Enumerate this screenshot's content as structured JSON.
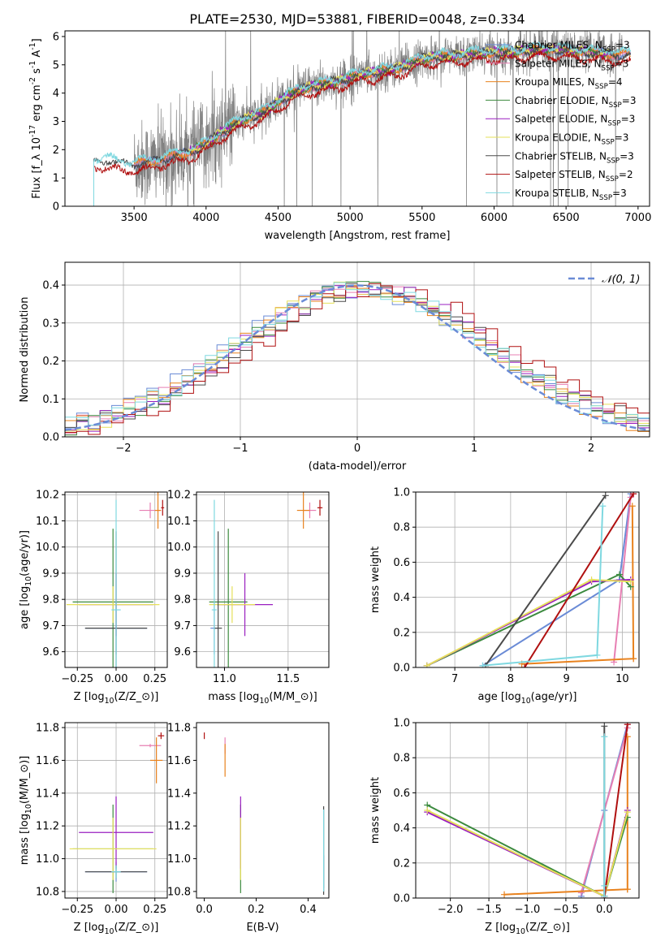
{
  "figure_title": "PLATE=2530, MJD=53881, FIBERID=0048, z=0.334",
  "legend_models": [
    {
      "label": "Chabrier MILES, N_{SSP}=3",
      "color": "#6a8bd6"
    },
    {
      "label": "Salpeter MILES, N_{SSP}=3",
      "color": "#e77fb3"
    },
    {
      "label": "Kroupa MILES, N_{SSP}=4",
      "color": "#e8821e"
    },
    {
      "label": "Chabrier ELODIE, N_{SSP}=3",
      "color": "#3b8a3e"
    },
    {
      "label": "Salpeter ELODIE, N_{SSP}=3",
      "color": "#9a1fc0"
    },
    {
      "label": "Kroupa ELODIE, N_{SSP}=3",
      "color": "#e6e05a"
    },
    {
      "label": "Chabrier STELIB, N_{SSP}=3",
      "color": "#4a4a4a"
    },
    {
      "label": "Salpeter STELIB, N_{SSP}=2",
      "color": "#b01010"
    },
    {
      "label": "Kroupa STELIB, N_{SSP}=3",
      "color": "#7fd8e0"
    }
  ],
  "chart_data": [
    {
      "id": "spectrum",
      "type": "line",
      "xlabel": "wavelength [Angstrom, rest frame]",
      "ylabel": "Flux [f_λ 10^{-17} erg cm^{-2} s^{-1} A^{-1}]",
      "xlim": [
        3020,
        7080
      ],
      "ylim": [
        0,
        6.2
      ],
      "xticks": [
        3500,
        4000,
        4500,
        5000,
        5500,
        6000,
        6500,
        7000
      ],
      "yticks": [
        0,
        1,
        2,
        3,
        4,
        5,
        6
      ],
      "grid": false,
      "legend_position": "top-right",
      "data_color": "#808080",
      "data_range": [
        3500,
        6900
      ],
      "model_anchors": {
        "x": [
          3220,
          3300,
          3400,
          3500,
          3600,
          3700,
          3800,
          3900,
          4000,
          4100,
          4200,
          4300,
          4400,
          4500,
          4600,
          4700,
          4800,
          4900,
          5000,
          5100,
          5200,
          5300,
          5400,
          5500,
          5600,
          5700,
          5800,
          5900,
          6000,
          6100,
          6200,
          6300,
          6400,
          6500,
          6600,
          6700,
          6800,
          6900
        ],
        "y": [
          1.6,
          1.65,
          1.5,
          1.5,
          1.55,
          1.7,
          1.8,
          1.95,
          2.2,
          2.6,
          2.9,
          3.15,
          3.3,
          3.7,
          4.0,
          4.2,
          4.3,
          4.4,
          4.55,
          4.7,
          4.75,
          4.85,
          5.0,
          5.2,
          5.3,
          5.3,
          5.35,
          5.4,
          5.45,
          5.45,
          5.5,
          5.55,
          5.55,
          5.5,
          5.5,
          5.4,
          5.4,
          5.35
        ]
      },
      "model_ranges": [
        [
          3500,
          6950
        ],
        [
          3500,
          6950
        ],
        [
          3500,
          6950
        ],
        [
          3880,
          6800
        ],
        [
          3880,
          6800
        ],
        [
          3880,
          6800
        ],
        [
          3220,
          6950
        ],
        [
          3220,
          6950
        ],
        [
          3220,
          6950
        ]
      ]
    },
    {
      "id": "residuals",
      "type": "histogram",
      "xlabel": "(data-model)/error",
      "ylabel": "Normed distribution",
      "xlim": [
        -2.5,
        2.5
      ],
      "ylim": [
        0,
        0.46
      ],
      "xticks": [
        -2,
        -1,
        0,
        1,
        2
      ],
      "yticks": [
        0.0,
        0.1,
        0.2,
        0.3,
        0.4
      ],
      "grid": true,
      "bin_width": 0.1,
      "bin_start": -2.5,
      "reference_curve": {
        "name": "N(0,1)",
        "mean": 0,
        "sigma": 1,
        "color": "#6a8bd6",
        "style": "dashed"
      },
      "legend_position": "top-right",
      "series_shifts": [
        0.0,
        0.05,
        0.03,
        0.08,
        0.1,
        0.06,
        0.12,
        0.22,
        0.04
      ]
    },
    {
      "id": "age-vs-Z",
      "type": "errorbar",
      "xlabel": "Z [log_{10}(Z/Z_⊙)]",
      "ylabel": "age  [log_{10}(age/yr)]",
      "xlim": [
        -0.33,
        0.33
      ],
      "ylim": [
        9.54,
        10.21
      ],
      "xticks": [
        -0.25,
        0.0,
        0.25
      ],
      "yticks": [
        9.6,
        9.7,
        9.8,
        9.9,
        10.0,
        10.1,
        10.2
      ],
      "grid": true,
      "points": [
        {
          "model": 0,
          "x": 0.0,
          "xerr": 0.2,
          "y": 9.69,
          "yerr": 0.1
        },
        {
          "model": 1,
          "x": 0.22,
          "xerr": 0.07,
          "y": 10.14,
          "yerr": 0.03
        },
        {
          "model": 2,
          "x": 0.27,
          "xerr": 0.02,
          "y": 10.14,
          "yerr": 0.07
        },
        {
          "model": 3,
          "x": -0.02,
          "xerr": 0.26,
          "y": 9.79,
          "yerr": 0.28
        },
        {
          "model": 4,
          "x": 0.0,
          "xerr": 0.24,
          "y": 9.78,
          "yerr": 0.12
        },
        {
          "model": 5,
          "x": -0.02,
          "xerr": 0.3,
          "y": 9.78,
          "yerr": 0.07
        },
        {
          "model": 6,
          "x": 0.0,
          "xerr": 0.2,
          "y": 9.69,
          "yerr": 0.37
        },
        {
          "model": 7,
          "x": 0.3,
          "xerr": 0.01,
          "y": 10.15,
          "yerr": 0.03
        },
        {
          "model": 8,
          "x": 0.0,
          "xerr": 0.03,
          "y": 9.76,
          "yerr": 0.42
        }
      ]
    },
    {
      "id": "age-vs-mass",
      "type": "errorbar",
      "xlabel": "mass [log_{10}(M/M_⊙)]",
      "ylabel": "",
      "xlim": [
        10.78,
        11.82
      ],
      "ylim": [
        9.54,
        10.21
      ],
      "xticks": [
        11.0,
        11.5
      ],
      "yticks": [
        9.6,
        9.7,
        9.8,
        9.9,
        10.0,
        10.1,
        10.2
      ],
      "grid": true,
      "points": [
        {
          "model": 0,
          "x": 10.92,
          "xerr": 0.03,
          "y": 9.69,
          "yerr": 0.1
        },
        {
          "model": 1,
          "x": 11.67,
          "xerr": 0.05,
          "y": 10.14,
          "yerr": 0.03
        },
        {
          "model": 2,
          "x": 11.62,
          "xerr": 0.05,
          "y": 10.14,
          "yerr": 0.07
        },
        {
          "model": 3,
          "x": 11.03,
          "xerr": 0.15,
          "y": 9.79,
          "yerr": 0.28
        },
        {
          "model": 4,
          "x": 11.16,
          "xerr": 0.22,
          "y": 9.78,
          "yerr": 0.12
        },
        {
          "model": 5,
          "x": 11.06,
          "xerr": 0.18,
          "y": 9.78,
          "yerr": 0.07
        },
        {
          "model": 6,
          "x": 10.95,
          "xerr": 0.03,
          "y": 9.69,
          "yerr": 0.37
        },
        {
          "model": 7,
          "x": 11.75,
          "xerr": 0.02,
          "y": 10.15,
          "yerr": 0.03
        },
        {
          "model": 8,
          "x": 10.92,
          "xerr": 0.02,
          "y": 9.76,
          "yerr": 0.42
        }
      ]
    },
    {
      "id": "mass-weight-vs-age",
      "type": "line",
      "xlabel": "age  [log_{10}(age/yr)]",
      "ylabel": "mass weight",
      "xlim": [
        6.3,
        10.3
      ],
      "ylim": [
        0.0,
        1.0
      ],
      "xticks": [
        7,
        8,
        9,
        10
      ],
      "yticks": [
        0.0,
        0.2,
        0.4,
        0.6,
        0.8,
        1.0
      ],
      "grid": true,
      "series": [
        {
          "model": 0,
          "x": [
            7.5,
            9.95,
            10.15
          ],
          "y": [
            0.01,
            0.5,
            0.99
          ]
        },
        {
          "model": 1,
          "x": [
            9.85,
            10.15,
            10.2
          ],
          "y": [
            0.03,
            0.97,
            0.99
          ]
        },
        {
          "model": 2,
          "x": [
            8.2,
            10.2,
            10.18,
            10.2
          ],
          "y": [
            0.02,
            0.05,
            0.92,
            0.05
          ]
        },
        {
          "model": 3,
          "x": [
            6.5,
            9.95,
            10.15
          ],
          "y": [
            0.01,
            0.53,
            0.46
          ]
        },
        {
          "model": 4,
          "x": [
            6.5,
            9.45,
            10.15
          ],
          "y": [
            0.01,
            0.49,
            0.5
          ]
        },
        {
          "model": 5,
          "x": [
            6.5,
            9.45,
            10.15
          ],
          "y": [
            0.01,
            0.5,
            0.49
          ]
        },
        {
          "model": 6,
          "x": [
            7.55,
            9.7
          ],
          "y": [
            0.01,
            0.98
          ]
        },
        {
          "model": 7,
          "x": [
            8.25,
            10.2
          ],
          "y": [
            0.0,
            0.99
          ]
        },
        {
          "model": 8,
          "x": [
            7.5,
            9.55,
            9.65
          ],
          "y": [
            0.01,
            0.07,
            0.92
          ]
        }
      ]
    },
    {
      "id": "mass-vs-Z",
      "type": "errorbar",
      "xlabel": "Z [log_{10}(Z/Z_⊙)]",
      "ylabel": "mass [log_{10}(M/M_⊙)]",
      "xlim": [
        -0.33,
        0.33
      ],
      "ylim": [
        10.76,
        11.83
      ],
      "xticks": [
        -0.25,
        0.0,
        0.25
      ],
      "yticks": [
        10.8,
        11.0,
        11.2,
        11.4,
        11.6,
        11.8
      ],
      "grid": true,
      "points": [
        {
          "model": 0,
          "x": 0.0,
          "xerr": 0.2,
          "y": 10.92,
          "yerr": 0.06
        },
        {
          "model": 1,
          "x": 0.22,
          "xerr": 0.07,
          "y": 11.69,
          "yerr": 0.01
        },
        {
          "model": 2,
          "x": 0.26,
          "xerr": 0.04,
          "y": 11.6,
          "yerr": 0.14
        },
        {
          "model": 3,
          "x": -0.02,
          "xerr": 0.26,
          "y": 11.06,
          "yerr": 0.27
        },
        {
          "model": 4,
          "x": 0.0,
          "xerr": 0.24,
          "y": 11.16,
          "yerr": 0.22
        },
        {
          "model": 5,
          "x": -0.02,
          "xerr": 0.28,
          "y": 11.06,
          "yerr": 0.19
        },
        {
          "model": 6,
          "x": 0.0,
          "xerr": 0.2,
          "y": 10.92,
          "yerr": 0.04
        },
        {
          "model": 7,
          "x": 0.29,
          "xerr": 0.02,
          "y": 11.75,
          "yerr": 0.02
        },
        {
          "model": 8,
          "x": 0.0,
          "xerr": 0.03,
          "y": 10.92,
          "yerr": 0.04
        }
      ]
    },
    {
      "id": "mass-vs-EBV",
      "type": "errorbar",
      "xlabel": "E(B-V)",
      "ylabel": "",
      "xlim": [
        -0.03,
        0.48
      ],
      "ylim": [
        10.76,
        11.83
      ],
      "xticks": [
        0.0,
        0.2,
        0.4
      ],
      "yticks": [
        10.8,
        11.0,
        11.2,
        11.4,
        11.6,
        11.8
      ],
      "grid": false,
      "points": [
        {
          "model": 0,
          "x": 0.46,
          "xerr": 0.0,
          "y": 10.92,
          "yerr": 0.1
        },
        {
          "model": 1,
          "x": 0.08,
          "xerr": 0.0,
          "y": 11.69,
          "yerr": 0.05
        },
        {
          "model": 2,
          "x": 0.08,
          "xerr": 0.0,
          "y": 11.6,
          "yerr": 0.1
        },
        {
          "model": 3,
          "x": 0.14,
          "xerr": 0.0,
          "y": 11.06,
          "yerr": 0.27
        },
        {
          "model": 4,
          "x": 0.14,
          "xerr": 0.0,
          "y": 11.16,
          "yerr": 0.22
        },
        {
          "model": 5,
          "x": 0.14,
          "xerr": 0.0,
          "y": 11.06,
          "yerr": 0.19
        },
        {
          "model": 6,
          "x": 0.46,
          "xerr": 0.0,
          "y": 11.05,
          "yerr": 0.27
        },
        {
          "model": 7,
          "x": 0.0,
          "xerr": 0.0,
          "y": 11.75,
          "yerr": 0.02
        },
        {
          "model": 8,
          "x": 0.46,
          "xerr": 0.0,
          "y": 11.05,
          "yerr": 0.25
        }
      ]
    },
    {
      "id": "mass-weight-vs-Z",
      "type": "line",
      "xlabel": "Z [log_{10}(Z/Z_⊙)]",
      "ylabel": "mass weight",
      "xlim": [
        -2.45,
        0.45
      ],
      "ylim": [
        0.0,
        1.0
      ],
      "xticks": [
        -2.0,
        -1.5,
        -1.0,
        -0.5,
        0.0
      ],
      "yticks": [
        0.0,
        0.2,
        0.4,
        0.6,
        0.8,
        1.0
      ],
      "grid": true,
      "series": [
        {
          "model": 0,
          "x": [
            -0.3,
            0.0,
            0.3
          ],
          "y": [
            0.01,
            0.5,
            0.99
          ]
        },
        {
          "model": 1,
          "x": [
            -0.3,
            0.3,
            0.3
          ],
          "y": [
            0.03,
            0.97,
            0.99
          ]
        },
        {
          "model": 2,
          "x": [
            -1.3,
            0.3,
            0.3,
            0.3
          ],
          "y": [
            0.02,
            0.05,
            0.92,
            0.05
          ]
        },
        {
          "model": 3,
          "x": [
            -2.3,
            0.0,
            0.3
          ],
          "y": [
            0.53,
            0.01,
            0.46
          ]
        },
        {
          "model": 4,
          "x": [
            -2.3,
            0.0,
            0.3
          ],
          "y": [
            0.49,
            0.01,
            0.5
          ]
        },
        {
          "model": 5,
          "x": [
            -2.3,
            0.0,
            0.3
          ],
          "y": [
            0.5,
            0.01,
            0.49
          ]
        },
        {
          "model": 6,
          "x": [
            0.0,
            0.0
          ],
          "y": [
            0.01,
            0.98
          ]
        },
        {
          "model": 7,
          "x": [
            0.0,
            0.3
          ],
          "y": [
            0.0,
            0.99
          ]
        },
        {
          "model": 8,
          "x": [
            0.0,
            0.0,
            0.0
          ],
          "y": [
            0.01,
            0.07,
            0.92
          ]
        }
      ]
    }
  ]
}
